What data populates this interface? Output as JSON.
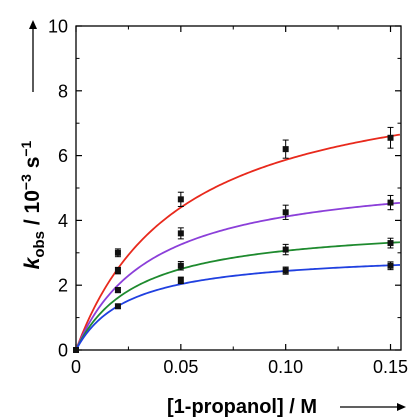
{
  "chart_data": {
    "type": "scatter",
    "xlabel": "[1-propanol] / M",
    "ylabel_parts": {
      "k": "k",
      "sub": "obs",
      "mid": " / 10",
      "exp": "−3",
      "unit": " s",
      "unit_exp": "−1"
    },
    "xlim": [
      0,
      0.155
    ],
    "ylim": [
      0,
      10
    ],
    "xticks": [
      0,
      0.05,
      0.1,
      0.15
    ],
    "xtick_labels": [
      "0",
      "0.05",
      "0.10",
      "0.15"
    ],
    "yticks": [
      0,
      2,
      4,
      6,
      8,
      10
    ],
    "ytick_labels": [
      "0",
      "2",
      "4",
      "6",
      "8",
      "10"
    ],
    "grid": false,
    "series": [
      {
        "color": "#e8291c",
        "x": [
          0.02,
          0.05,
          0.1,
          0.15
        ],
        "y": [
          3.0,
          4.65,
          6.2,
          6.55
        ],
        "err": [
          0.12,
          0.22,
          0.28,
          0.32
        ],
        "fit": {
          "kmax": 8.8,
          "K": 0.05
        }
      },
      {
        "color": "#8b3fd9",
        "x": [
          0.02,
          0.05,
          0.1,
          0.15
        ],
        "y": [
          2.45,
          3.6,
          4.25,
          4.55
        ],
        "err": [
          0.1,
          0.17,
          0.22,
          0.22
        ],
        "fit": {
          "kmax": 5.6,
          "K": 0.036
        }
      },
      {
        "color": "#1e8a2e",
        "x": [
          0.02,
          0.05,
          0.1,
          0.15
        ],
        "y": [
          1.85,
          2.6,
          3.1,
          3.3
        ],
        "err": [
          0.08,
          0.13,
          0.16,
          0.15
        ],
        "fit": {
          "kmax": 3.95,
          "K": 0.029
        }
      },
      {
        "color": "#2040e0",
        "x": [
          0.02,
          0.05,
          0.1,
          0.15
        ],
        "y": [
          1.35,
          2.15,
          2.45,
          2.6
        ],
        "err": [
          0.07,
          0.1,
          0.11,
          0.12
        ],
        "fit": {
          "kmax": 3.05,
          "K": 0.025
        }
      }
    ]
  }
}
